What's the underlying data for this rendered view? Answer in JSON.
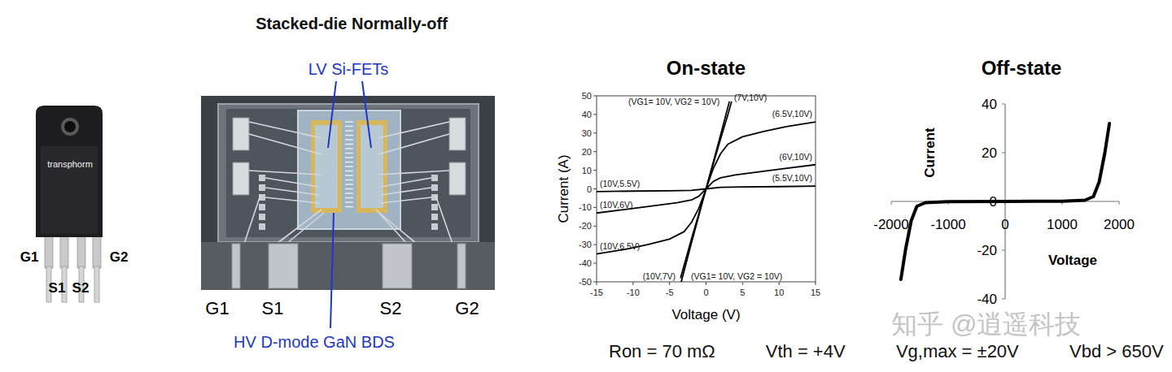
{
  "package": {
    "brand": "transphorm",
    "pins": [
      "G1",
      "S1",
      "S2",
      "G2"
    ]
  },
  "die": {
    "title": "Stacked-die Normally-off",
    "top_label": "LV Si-FETs",
    "bottom_label": "HV D-mode GaN BDS",
    "pins": [
      "G1",
      "S1",
      "S2",
      "G2"
    ]
  },
  "chart_data": [
    {
      "type": "line",
      "title": "On-state",
      "x_label": "Voltage (V)",
      "y_label": "Current (A)",
      "xlim": [
        -15,
        15
      ],
      "ylim": [
        -50,
        50
      ],
      "xticks": [
        -15,
        -10,
        -5,
        0,
        5,
        10,
        15
      ],
      "yticks": [
        -50,
        -40,
        -30,
        -20,
        -10,
        0,
        10,
        20,
        30,
        40,
        50
      ],
      "grid": false,
      "color": "#000000",
      "series": [
        {
          "name": "(VG1= 10V, VG2 = 10V)",
          "x": [
            -3.4,
            -2,
            -1,
            0,
            1,
            2,
            3.2
          ],
          "values": [
            -50,
            -29,
            -14.5,
            0,
            14.5,
            29,
            47
          ]
        },
        {
          "name": "(7V,10V)",
          "x": [
            0,
            1,
            2,
            3,
            3.5
          ],
          "values": [
            0,
            13.5,
            27,
            40,
            47
          ]
        },
        {
          "name": "(6.5V,10V)",
          "x": [
            0,
            1,
            2,
            3,
            5,
            8,
            11,
            15
          ],
          "values": [
            0,
            11,
            19,
            24,
            28,
            31,
            33.5,
            36
          ]
        },
        {
          "name": "(6V,10V)",
          "x": [
            0,
            1,
            2,
            4,
            7,
            10,
            15
          ],
          "values": [
            0,
            4,
            6,
            7.5,
            9,
            10.5,
            13
          ]
        },
        {
          "name": "(5.5V,10V)",
          "x": [
            0,
            2,
            5,
            10,
            15
          ],
          "values": [
            0,
            0.8,
            1,
            1.2,
            1.5
          ]
        },
        {
          "name": "(10V,7V)",
          "x": [
            -3.5,
            -3,
            -2,
            -1,
            0
          ],
          "values": [
            -48,
            -41,
            -27,
            -13.5,
            0
          ]
        },
        {
          "name": "(10V,6.5V)",
          "x": [
            -15,
            -11,
            -8,
            -5,
            -3,
            -2,
            -1,
            0
          ],
          "values": [
            -35,
            -32.5,
            -30,
            -27,
            -23,
            -18,
            -10.5,
            0
          ]
        },
        {
          "name": "(10V,6V)",
          "x": [
            -15,
            -10,
            -7,
            -4,
            -2,
            -1,
            0
          ],
          "values": [
            -13,
            -10.5,
            -9,
            -7.5,
            -6,
            -4,
            0
          ]
        },
        {
          "name": "(10V,5.5V)",
          "x": [
            -15,
            -10,
            -5,
            -2,
            0
          ],
          "values": [
            -1.5,
            -1.2,
            -1,
            -0.8,
            0
          ]
        }
      ]
    },
    {
      "type": "line",
      "title": "Off-state",
      "x_label": "Voltage",
      "y_label": "Current",
      "xlim": [
        -2000,
        2000
      ],
      "ylim": [
        -40,
        40
      ],
      "xticks": [
        -2000,
        -1000,
        0,
        1000,
        2000
      ],
      "yticks": [
        -40,
        -20,
        0,
        20,
        40
      ],
      "grid": false,
      "color": "#000000",
      "x": [
        -1830,
        -1750,
        -1650,
        -1550,
        -1400,
        -1000,
        0,
        1000,
        1400,
        1550,
        1650,
        1750,
        1830
      ],
      "series": [
        {
          "values": [
            -32,
            -20,
            -8,
            -2,
            -0.5,
            -0.1,
            0,
            0.1,
            0.5,
            2,
            8,
            20,
            32
          ]
        }
      ]
    }
  ],
  "specs": [
    "Ron = 70 mΩ",
    "Vth = +4V",
    "Vg,max = ±20V",
    "Vbd > 650V"
  ],
  "watermark": "知乎 @逍遥科技"
}
